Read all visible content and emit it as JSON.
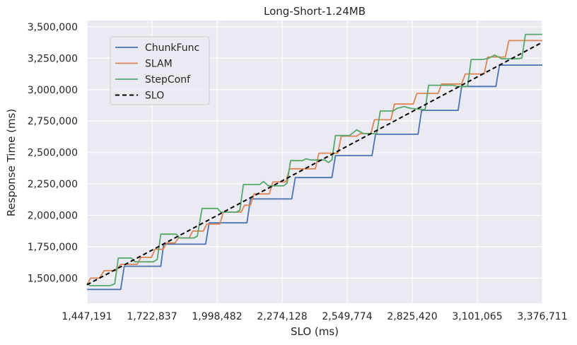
{
  "chart_data": {
    "type": "line",
    "title": "Long-Short-1.24MB",
    "xlabel": "SLO (ms)",
    "ylabel": "Response Time (ms)",
    "xlim": [
      1447191,
      3376711
    ],
    "ylim": [
      1300000,
      3550000
    ],
    "grid": true,
    "legend_position": "upper-left",
    "xticks": [
      1447191,
      1722837,
      1998482,
      2274128,
      2549774,
      2825420,
      3101065,
      3376711
    ],
    "xtick_labels": [
      "1,447,191",
      "1,722,837",
      "1,998,482",
      "2,274,128",
      "2,549,774",
      "2,825,420",
      "3,101,065",
      "3,376,711"
    ],
    "yticks": [
      1500000,
      1750000,
      2000000,
      2250000,
      2500000,
      2750000,
      3000000,
      3250000,
      3500000
    ],
    "ytick_labels": [
      "1,500,000",
      "1,750,000",
      "2,000,000",
      "2,250,000",
      "2,500,000",
      "2,750,000",
      "3,000,000",
      "3,250,000",
      "3,500,000"
    ],
    "series": [
      {
        "name": "ChunkFunc",
        "color": "#4c72b0",
        "style": "solid",
        "points": [
          [
            1447191,
            1410000
          ],
          [
            1590000,
            1410000
          ],
          [
            1605000,
            1595000
          ],
          [
            1760000,
            1595000
          ],
          [
            1772000,
            1770000
          ],
          [
            1950000,
            1770000
          ],
          [
            1965000,
            1940000
          ],
          [
            2125000,
            1940000
          ],
          [
            2140000,
            2130000
          ],
          [
            2315000,
            2130000
          ],
          [
            2330000,
            2300000
          ],
          [
            2485000,
            2300000
          ],
          [
            2500000,
            2475000
          ],
          [
            2655000,
            2475000
          ],
          [
            2670000,
            2645000
          ],
          [
            2850000,
            2645000
          ],
          [
            2865000,
            2835000
          ],
          [
            3020000,
            2835000
          ],
          [
            3035000,
            3025000
          ],
          [
            3180000,
            3025000
          ],
          [
            3195000,
            3195000
          ],
          [
            3376711,
            3195000
          ]
        ]
      },
      {
        "name": "SLAM",
        "color": "#dd8452",
        "style": "solid",
        "points": [
          [
            1447191,
            1445000
          ],
          [
            1462000,
            1500000
          ],
          [
            1500000,
            1500000
          ],
          [
            1520000,
            1560000
          ],
          [
            1570000,
            1560000
          ],
          [
            1590000,
            1610000
          ],
          [
            1660000,
            1610000
          ],
          [
            1675000,
            1665000
          ],
          [
            1720000,
            1665000
          ],
          [
            1735000,
            1730000
          ],
          [
            1770000,
            1730000
          ],
          [
            1785000,
            1780000
          ],
          [
            1820000,
            1780000
          ],
          [
            1835000,
            1820000
          ],
          [
            1880000,
            1820000
          ],
          [
            1895000,
            1875000
          ],
          [
            1940000,
            1875000
          ],
          [
            1955000,
            1930000
          ],
          [
            2010000,
            1930000
          ],
          [
            2025000,
            2025000
          ],
          [
            2100000,
            2025000
          ],
          [
            2115000,
            2080000
          ],
          [
            2140000,
            2080000
          ],
          [
            2155000,
            2170000
          ],
          [
            2220000,
            2170000
          ],
          [
            2235000,
            2265000
          ],
          [
            2290000,
            2265000
          ],
          [
            2305000,
            2370000
          ],
          [
            2325000,
            2370000
          ],
          [
            2340000,
            2370000
          ],
          [
            2415000,
            2370000
          ],
          [
            2430000,
            2495000
          ],
          [
            2510000,
            2495000
          ],
          [
            2525000,
            2630000
          ],
          [
            2590000,
            2630000
          ],
          [
            2605000,
            2650000
          ],
          [
            2650000,
            2650000
          ],
          [
            2665000,
            2760000
          ],
          [
            2735000,
            2760000
          ],
          [
            2750000,
            2885000
          ],
          [
            2830000,
            2885000
          ],
          [
            2845000,
            2970000
          ],
          [
            2935000,
            2970000
          ],
          [
            2950000,
            3045000
          ],
          [
            3035000,
            3045000
          ],
          [
            3050000,
            3125000
          ],
          [
            3130000,
            3125000
          ],
          [
            3145000,
            3260000
          ],
          [
            3220000,
            3260000
          ],
          [
            3235000,
            3390000
          ],
          [
            3376711,
            3390000
          ]
        ]
      },
      {
        "name": "StepConf",
        "color": "#55a868",
        "style": "solid",
        "points": [
          [
            1447191,
            1460000
          ],
          [
            1460000,
            1440000
          ],
          [
            1545000,
            1440000
          ],
          [
            1565000,
            1455000
          ],
          [
            1580000,
            1660000
          ],
          [
            1635000,
            1660000
          ],
          [
            1650000,
            1630000
          ],
          [
            1730000,
            1630000
          ],
          [
            1745000,
            1650000
          ],
          [
            1760000,
            1850000
          ],
          [
            1825000,
            1850000
          ],
          [
            1840000,
            1820000
          ],
          [
            1900000,
            1820000
          ],
          [
            1915000,
            1835000
          ],
          [
            1935000,
            2055000
          ],
          [
            2000000,
            2055000
          ],
          [
            2015000,
            2025000
          ],
          [
            2080000,
            2025000
          ],
          [
            2095000,
            2040000
          ],
          [
            2110000,
            2245000
          ],
          [
            2180000,
            2245000
          ],
          [
            2195000,
            2270000
          ],
          [
            2215000,
            2235000
          ],
          [
            2280000,
            2235000
          ],
          [
            2295000,
            2255000
          ],
          [
            2310000,
            2435000
          ],
          [
            2360000,
            2435000
          ],
          [
            2375000,
            2450000
          ],
          [
            2395000,
            2440000
          ],
          [
            2455000,
            2440000
          ],
          [
            2470000,
            2420000
          ],
          [
            2485000,
            2440000
          ],
          [
            2500000,
            2635000
          ],
          [
            2560000,
            2635000
          ],
          [
            2590000,
            2680000
          ],
          [
            2620000,
            2650000
          ],
          [
            2675000,
            2650000
          ],
          [
            2690000,
            2830000
          ],
          [
            2745000,
            2830000
          ],
          [
            2760000,
            2850000
          ],
          [
            2790000,
            2865000
          ],
          [
            2820000,
            2850000
          ],
          [
            2880000,
            2840000
          ],
          [
            2895000,
            3035000
          ],
          [
            3000000,
            3035000
          ],
          [
            3015000,
            3025000
          ],
          [
            3060000,
            3025000
          ],
          [
            3075000,
            3240000
          ],
          [
            3125000,
            3240000
          ],
          [
            3150000,
            3250000
          ],
          [
            3175000,
            3275000
          ],
          [
            3205000,
            3245000
          ],
          [
            3265000,
            3245000
          ],
          [
            3290000,
            3250000
          ],
          [
            3305000,
            3440000
          ],
          [
            3376711,
            3440000
          ]
        ]
      },
      {
        "name": "SLO",
        "color": "#000000",
        "style": "dashed",
        "points": [
          [
            1447191,
            1447191
          ],
          [
            3376711,
            3376711
          ]
        ]
      }
    ]
  }
}
